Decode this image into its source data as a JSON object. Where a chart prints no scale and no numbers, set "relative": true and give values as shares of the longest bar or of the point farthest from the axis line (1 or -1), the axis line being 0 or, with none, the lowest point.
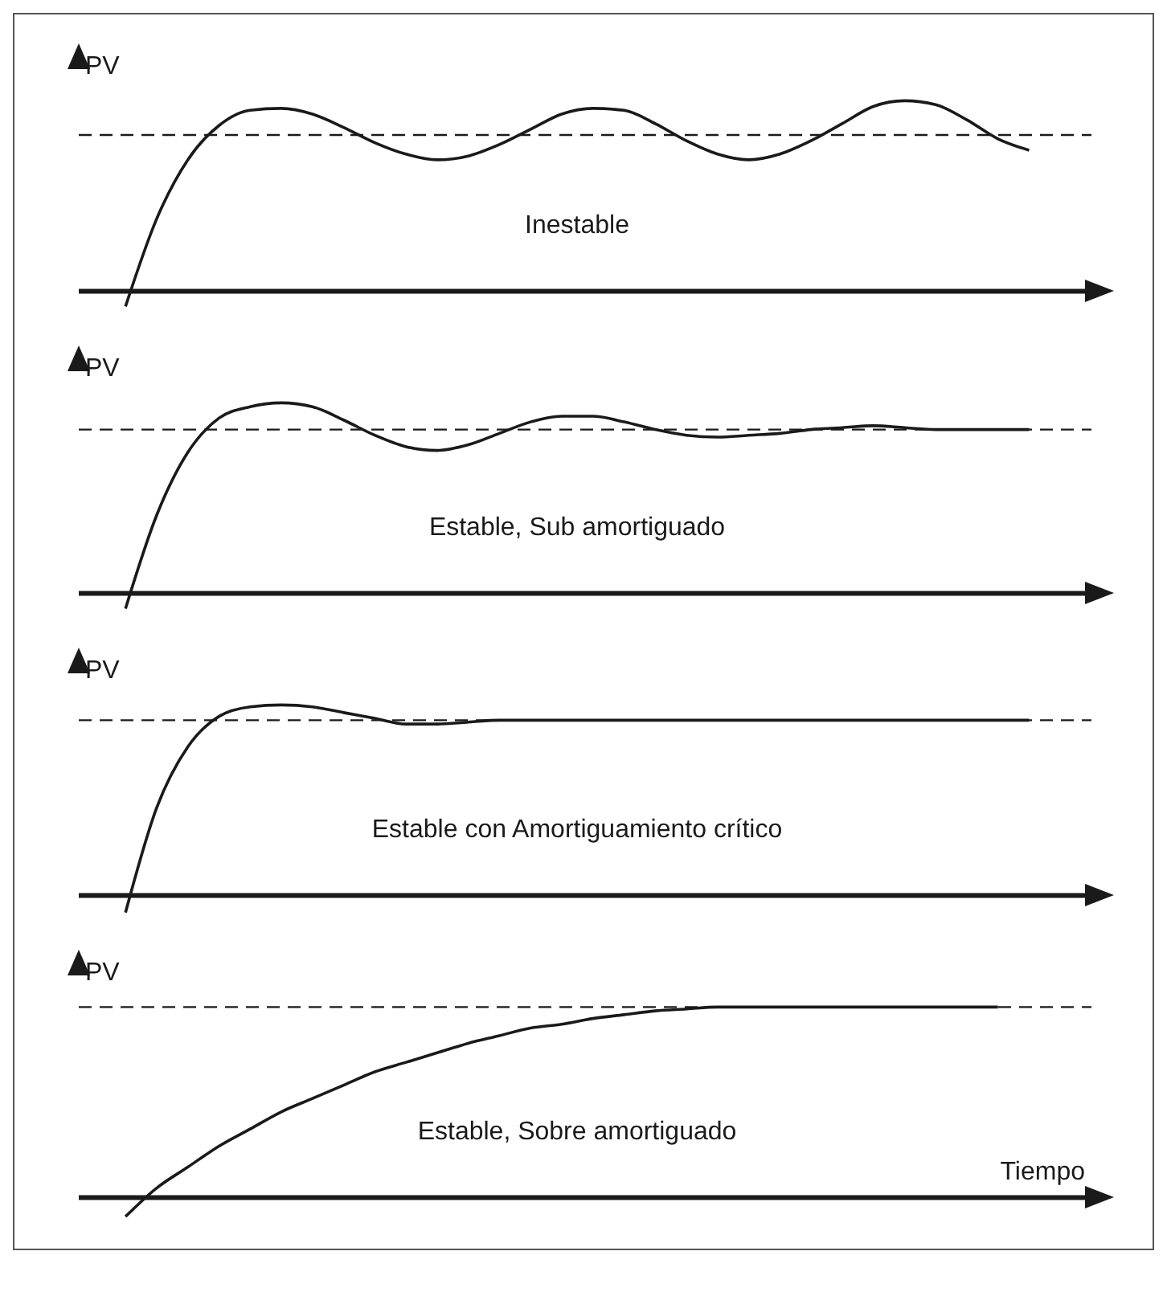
{
  "chart_data": [
    {
      "type": "line",
      "relative": true,
      "ylabel": "PV",
      "annotations": [
        "Inestable"
      ],
      "marker": "none",
      "line_style": "solid",
      "color": "#1a1a1a",
      "categories": [
        null,
        null,
        null,
        null,
        null,
        null,
        null,
        null,
        null,
        null,
        null,
        null,
        null,
        null,
        null,
        null,
        null,
        null,
        null,
        null,
        null,
        null,
        null,
        null,
        null,
        null,
        null,
        null,
        null,
        null,
        null
      ],
      "values": [
        -0.08,
        0.38,
        0.69,
        0.87,
        0.95,
        0.96,
        0.93,
        0.86,
        0.78,
        0.72,
        0.69,
        0.71,
        0.77,
        0.85,
        0.93,
        0.96,
        0.95,
        0.88,
        0.79,
        0.72,
        0.69,
        0.72,
        0.79,
        0.88,
        0.97,
        1,
        0.98,
        0.9,
        0.8,
        0.74,
        null
      ],
      "ref_lines": [
        {
          "axis": "y",
          "value": 0.82,
          "line_style": "dashed",
          "color": "#1a1a1a"
        }
      ]
    },
    {
      "type": "line",
      "relative": true,
      "ylabel": "PV",
      "annotations": [
        "Estable, Sub amortiguado"
      ],
      "marker": "none",
      "line_style": "solid",
      "color": "#1a1a1a",
      "categories": [
        null,
        null,
        null,
        null,
        null,
        null,
        null,
        null,
        null,
        null,
        null,
        null,
        null,
        null,
        null,
        null,
        null,
        null,
        null,
        null,
        null,
        null,
        null,
        null,
        null,
        null,
        null,
        null,
        null,
        null,
        null
      ],
      "values": [
        -0.08,
        0.41,
        0.74,
        0.92,
        0.98,
        1,
        0.98,
        0.91,
        0.83,
        0.77,
        0.75,
        0.78,
        0.84,
        0.9,
        0.93,
        0.93,
        0.9,
        0.86,
        0.83,
        0.82,
        0.83,
        0.84,
        0.86,
        0.87,
        0.88,
        0.87,
        0.86,
        0.86,
        0.86,
        0.86,
        null
      ],
      "ref_lines": [
        {
          "axis": "y",
          "value": 0.86,
          "line_style": "dashed",
          "color": "#1a1a1a"
        }
      ]
    },
    {
      "type": "line",
      "relative": true,
      "ylabel": "PV",
      "annotations": [
        "Estable con Amortiguamiento crítico"
      ],
      "marker": "none",
      "line_style": "solid",
      "color": "#1a1a1a",
      "categories": [
        null,
        null,
        null,
        null,
        null,
        null,
        null,
        null,
        null,
        null,
        null,
        null,
        null,
        null,
        null,
        null,
        null,
        null,
        null,
        null,
        null,
        null,
        null,
        null,
        null,
        null,
        null,
        null,
        null,
        null,
        null
      ],
      "values": [
        -0.09,
        0.46,
        0.78,
        0.94,
        0.99,
        1,
        0.99,
        0.96,
        0.93,
        0.9,
        0.9,
        0.91,
        0.92,
        0.92,
        0.92,
        0.92,
        0.92,
        0.92,
        0.92,
        0.92,
        0.92,
        0.92,
        0.92,
        0.92,
        0.92,
        0.92,
        0.92,
        0.92,
        0.92,
        0.92,
        null
      ],
      "ref_lines": [
        {
          "axis": "y",
          "value": 0.92,
          "line_style": "dashed",
          "color": "#1a1a1a"
        }
      ]
    },
    {
      "type": "line",
      "relative": true,
      "ylabel": "PV",
      "xlabel": "Tiempo",
      "annotations": [
        "Estable, Sobre amortiguado"
      ],
      "marker": "none",
      "line_style": "solid",
      "color": "#1a1a1a",
      "categories": [
        null,
        null,
        null,
        null,
        null,
        null,
        null,
        null,
        null,
        null,
        null,
        null,
        null,
        null,
        null,
        null,
        null,
        null,
        null,
        null,
        null,
        null,
        null,
        null,
        null,
        null,
        null,
        null,
        null,
        null,
        null
      ],
      "values": [
        -0.1,
        0.05,
        0.16,
        0.27,
        0.36,
        0.45,
        0.52,
        0.59,
        0.66,
        0.71,
        0.76,
        0.81,
        0.85,
        0.89,
        0.91,
        0.94,
        0.96,
        0.98,
        0.99,
        1,
        1,
        1,
        1,
        1,
        1,
        1,
        1,
        1,
        1,
        null,
        null
      ],
      "ref_lines": [
        {
          "axis": "y",
          "value": 1,
          "line_style": "dashed",
          "color": "#1a1a1a"
        }
      ]
    }
  ]
}
